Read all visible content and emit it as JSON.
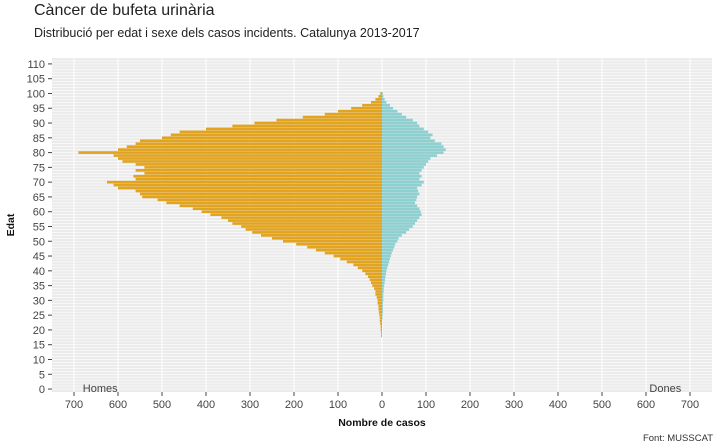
{
  "chart_data": {
    "type": "bar",
    "orientation": "horizontal-population-pyramid",
    "title": "Càncer de bufeta urinària",
    "subtitle": "Distribució per edat i sexe dels casos incidents. Catalunya 2013-2017",
    "xlabel": "Nombre de casos",
    "ylabel": "Edat",
    "caption": "Font: MUSSCAT",
    "xlim": [
      -750,
      750
    ],
    "ylim": [
      -1,
      112
    ],
    "x_ticks": [
      -700,
      -600,
      -500,
      -400,
      -300,
      -200,
      -100,
      0,
      100,
      200,
      300,
      400,
      500,
      600,
      700
    ],
    "x_tick_labels": [
      "700",
      "600",
      "500",
      "400",
      "300",
      "200",
      "100",
      "0",
      "100",
      "200",
      "300",
      "400",
      "500",
      "600",
      "700"
    ],
    "y_ticks": [
      0,
      5,
      10,
      15,
      20,
      25,
      30,
      35,
      40,
      45,
      50,
      55,
      60,
      65,
      70,
      75,
      80,
      85,
      90,
      95,
      100,
      105,
      110
    ],
    "grid": true,
    "background": "#ebebeb",
    "series": [
      {
        "name": "Homes",
        "color": "#e2a31f",
        "label_position": "bottom-left",
        "ages": [
          18,
          19,
          20,
          21,
          22,
          23,
          24,
          25,
          26,
          27,
          28,
          29,
          30,
          31,
          32,
          33,
          34,
          35,
          36,
          37,
          38,
          39,
          40,
          41,
          42,
          43,
          44,
          45,
          46,
          47,
          48,
          49,
          50,
          51,
          52,
          53,
          54,
          55,
          56,
          57,
          58,
          59,
          60,
          61,
          62,
          63,
          64,
          65,
          66,
          67,
          68,
          69,
          70,
          71,
          72,
          73,
          74,
          75,
          76,
          77,
          78,
          79,
          80,
          81,
          82,
          83,
          84,
          85,
          86,
          87,
          88,
          89,
          90,
          91,
          92,
          93,
          94,
          95,
          96,
          97,
          98,
          99,
          100
        ],
        "values": [
          2,
          2,
          3,
          3,
          4,
          5,
          5,
          6,
          7,
          8,
          8,
          10,
          10,
          12,
          15,
          15,
          18,
          22,
          25,
          28,
          32,
          38,
          45,
          55,
          65,
          80,
          95,
          110,
          130,
          150,
          170,
          195,
          225,
          250,
          275,
          295,
          310,
          320,
          340,
          350,
          365,
          390,
          410,
          430,
          460,
          490,
          510,
          545,
          550,
          560,
          600,
          610,
          625,
          560,
          565,
          540,
          560,
          540,
          560,
          590,
          600,
          610,
          690,
          600,
          580,
          560,
          550,
          500,
          480,
          460,
          400,
          340,
          290,
          240,
          180,
          130,
          100,
          70,
          45,
          25,
          15,
          8,
          4
        ]
      },
      {
        "name": "Dones",
        "color": "#8ecfcf",
        "label_position": "bottom-right",
        "ages": [
          24,
          25,
          26,
          27,
          28,
          29,
          30,
          31,
          32,
          33,
          34,
          35,
          36,
          37,
          38,
          39,
          40,
          41,
          42,
          43,
          44,
          45,
          46,
          47,
          48,
          49,
          50,
          51,
          52,
          53,
          54,
          55,
          56,
          57,
          58,
          59,
          60,
          61,
          62,
          63,
          64,
          65,
          66,
          67,
          68,
          69,
          70,
          71,
          72,
          73,
          74,
          75,
          76,
          77,
          78,
          79,
          80,
          81,
          82,
          83,
          84,
          85,
          86,
          87,
          88,
          89,
          90,
          91,
          92,
          93,
          94,
          95,
          96,
          97,
          98,
          99,
          100
        ],
        "values": [
          1,
          1,
          2,
          2,
          2,
          2,
          3,
          3,
          3,
          4,
          4,
          5,
          6,
          7,
          8,
          9,
          10,
          12,
          14,
          16,
          18,
          20,
          22,
          25,
          28,
          30,
          35,
          38,
          45,
          55,
          62,
          70,
          75,
          80,
          85,
          90,
          88,
          85,
          80,
          75,
          78,
          80,
          85,
          82,
          80,
          90,
          95,
          85,
          90,
          85,
          90,
          95,
          100,
          105,
          110,
          125,
          140,
          145,
          140,
          135,
          120,
          110,
          115,
          105,
          95,
          85,
          80,
          70,
          55,
          45,
          35,
          25,
          18,
          10,
          6,
          3,
          2
        ]
      }
    ]
  }
}
